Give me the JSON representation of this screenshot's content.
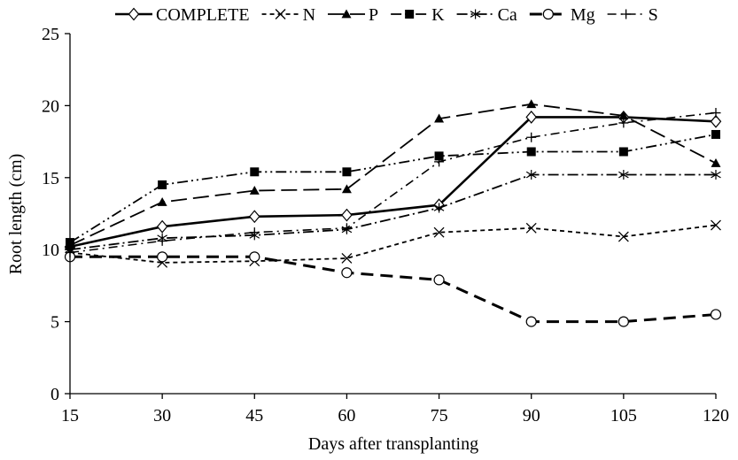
{
  "chart_data": {
    "type": "line",
    "xlabel": "Days after transplanting",
    "ylabel": "Root length (cm)",
    "x": [
      15,
      30,
      45,
      60,
      75,
      90,
      105,
      120
    ],
    "xlim": [
      15,
      120
    ],
    "ylim": [
      0,
      25
    ],
    "x_ticks": [
      "15",
      "30",
      "45",
      "60",
      "75",
      "90",
      "105",
      "120"
    ],
    "y_ticks": [
      "0",
      "5",
      "10",
      "15",
      "20",
      "25"
    ],
    "grid": false,
    "legend_position": "top",
    "series": [
      {
        "name": "COMPLETE",
        "marker": "diamond-open",
        "line": "solid",
        "values": [
          10.2,
          11.6,
          12.3,
          12.4,
          13.1,
          19.2,
          19.2,
          18.9
        ]
      },
      {
        "name": "N",
        "marker": "x",
        "line": "short-dash",
        "values": [
          9.8,
          9.1,
          9.2,
          9.4,
          11.2,
          11.5,
          10.9,
          11.7
        ]
      },
      {
        "name": "P",
        "marker": "triangle-filled",
        "line": "long-dash",
        "values": [
          10.3,
          13.3,
          14.1,
          14.2,
          19.1,
          20.1,
          19.3,
          16.0
        ]
      },
      {
        "name": "K",
        "marker": "square-filled",
        "line": "dash-dot-dot",
        "values": [
          10.5,
          14.5,
          15.4,
          15.4,
          16.5,
          16.8,
          16.8,
          18.0
        ]
      },
      {
        "name": "Ca",
        "marker": "asterisk",
        "line": "dash-dot",
        "values": [
          10.0,
          10.8,
          11.0,
          11.4,
          12.9,
          15.2,
          15.2,
          15.2
        ]
      },
      {
        "name": "Mg",
        "marker": "circle-open",
        "line": "heavy-dash",
        "values": [
          9.5,
          9.5,
          9.5,
          8.4,
          7.9,
          5.0,
          5.0,
          5.5
        ]
      },
      {
        "name": "S",
        "marker": "plus",
        "line": "dash-dot-sparse",
        "values": [
          9.8,
          10.6,
          11.2,
          11.5,
          16.1,
          17.8,
          18.8,
          19.5
        ]
      }
    ]
  }
}
